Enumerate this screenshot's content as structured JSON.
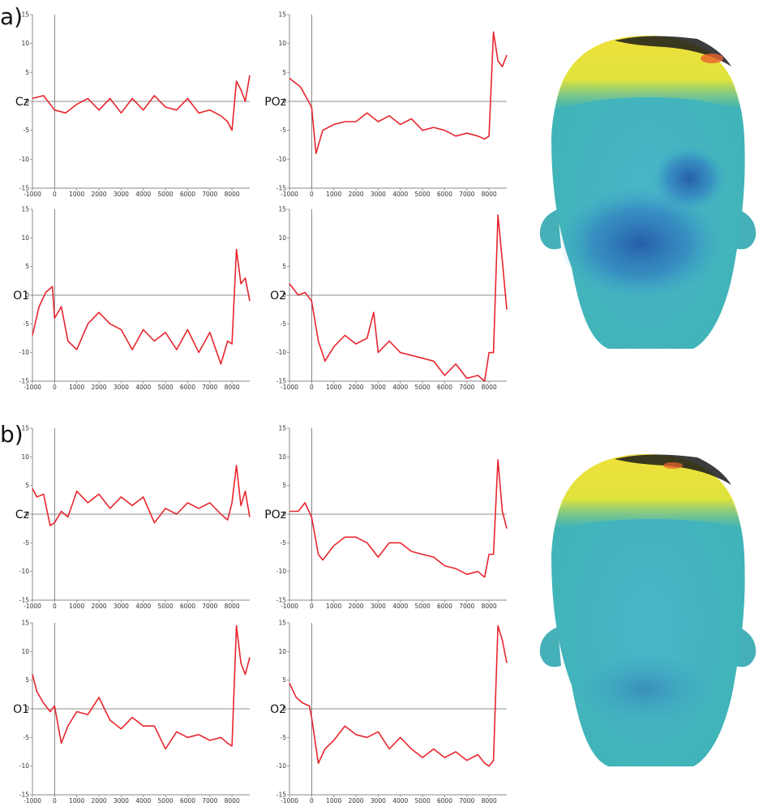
{
  "panel_labels": [
    "a)",
    "b)"
  ],
  "colors": {
    "trace": "#e8252d",
    "axis": "#888888",
    "baseline": "#666666"
  },
  "chart_data": [
    {
      "type": "line",
      "panel": "a)",
      "channel": "Cz",
      "xlim": [
        -1000,
        8800
      ],
      "ylim": [
        -15,
        15
      ],
      "xticks": [
        "-1000",
        "0",
        "1000",
        "2000",
        "3000",
        "4000",
        "5000",
        "6000",
        "7000",
        "8000"
      ],
      "yticks": [
        "15",
        "10",
        "5",
        "0",
        "-5",
        "-10",
        "-15"
      ],
      "x": [
        -1000,
        -500,
        0,
        500,
        1000,
        1500,
        2000,
        2500,
        3000,
        3500,
        4000,
        4500,
        5000,
        5500,
        6000,
        6500,
        7000,
        7500,
        7800,
        8000,
        8200,
        8400,
        8600,
        8800
      ],
      "y": [
        0.5,
        1,
        -1.5,
        -2,
        -0.5,
        0.5,
        -1.5,
        0.5,
        -2,
        0.5,
        -1.5,
        1,
        -1,
        -1.5,
        0.5,
        -2,
        -1.5,
        -2.5,
        -3.5,
        -5,
        3.5,
        2,
        0,
        4.5
      ]
    },
    {
      "type": "line",
      "panel": "a)",
      "channel": "POz",
      "xlim": [
        -1000,
        8800
      ],
      "ylim": [
        -15,
        15
      ],
      "xticks": [
        "-1000",
        "0",
        "1000",
        "2000",
        "3000",
        "4000",
        "5000",
        "6000",
        "7000",
        "8000"
      ],
      "yticks": [
        "15",
        "10",
        "5",
        "0",
        "-5",
        "-10",
        "-15"
      ],
      "x": [
        -1000,
        -500,
        0,
        200,
        500,
        1000,
        1500,
        2000,
        2500,
        3000,
        3500,
        4000,
        4500,
        5000,
        5500,
        6000,
        6500,
        7000,
        7500,
        7800,
        8000,
        8200,
        8400,
        8600,
        8800
      ],
      "y": [
        4,
        2.5,
        -1,
        -9,
        -5,
        -4,
        -3.5,
        -3.5,
        -2,
        -3.5,
        -2.5,
        -4,
        -3,
        -5,
        -4.5,
        -5,
        -6,
        -5.5,
        -6,
        -6.5,
        -6,
        12,
        7,
        6,
        8
      ]
    },
    {
      "type": "line",
      "panel": "a)",
      "channel": "O1",
      "xlim": [
        -1000,
        8800
      ],
      "ylim": [
        -15,
        15
      ],
      "xticks": [
        "-1000",
        "0",
        "1000",
        "2000",
        "3000",
        "4000",
        "5000",
        "6000",
        "7000",
        "8000"
      ],
      "yticks": [
        "15",
        "10",
        "5",
        "0",
        "-5",
        "-10",
        "-15"
      ],
      "x": [
        -1000,
        -700,
        -400,
        -100,
        0,
        300,
        600,
        1000,
        1500,
        2000,
        2500,
        3000,
        3500,
        4000,
        4500,
        5000,
        5500,
        6000,
        6500,
        7000,
        7500,
        7800,
        8000,
        8200,
        8400,
        8600,
        8800
      ],
      "y": [
        -7,
        -2,
        0.5,
        1.5,
        -4,
        -2,
        -8,
        -9.5,
        -5,
        -3,
        -5,
        -6,
        -9.5,
        -6,
        -8,
        -6.5,
        -9.5,
        -6,
        -10,
        -6.5,
        -12,
        -8,
        -8.5,
        8,
        2,
        3,
        -1
      ]
    },
    {
      "type": "line",
      "panel": "a)",
      "channel": "O2",
      "xlim": [
        -1000,
        8800
      ],
      "ylim": [
        -15,
        15
      ],
      "xticks": [
        "-1000",
        "0",
        "1000",
        "2000",
        "3000",
        "4000",
        "5000",
        "6000",
        "7000",
        "8000"
      ],
      "yticks": [
        "15",
        "10",
        "5",
        "0",
        "-5",
        "-10",
        "-15"
      ],
      "x": [
        -1000,
        -600,
        -300,
        0,
        300,
        600,
        1000,
        1500,
        2000,
        2500,
        2800,
        3000,
        3500,
        4000,
        4500,
        5000,
        5500,
        6000,
        6500,
        7000,
        7500,
        7800,
        8000,
        8200,
        8400,
        8600,
        8800
      ],
      "y": [
        2,
        0,
        0.5,
        -1,
        -8,
        -11.5,
        -9,
        -7,
        -8.5,
        -7.5,
        -3,
        -10,
        -8,
        -10,
        -10.5,
        -11,
        -11.5,
        -14,
        -12,
        -14.5,
        -14,
        -15,
        -10,
        -10,
        14,
        6,
        -2.5
      ]
    },
    {
      "type": "line",
      "panel": "b)",
      "channel": "Cz",
      "xlim": [
        -1000,
        8800
      ],
      "ylim": [
        -15,
        15
      ],
      "xticks": [
        "-1000",
        "0",
        "1000",
        "2000",
        "3000",
        "4000",
        "5000",
        "6000",
        "7000",
        "8000"
      ],
      "yticks": [
        "15",
        "10",
        "5",
        "0",
        "-5",
        "-10",
        "-15"
      ],
      "x": [
        -1000,
        -800,
        -500,
        -200,
        0,
        300,
        600,
        1000,
        1500,
        2000,
        2500,
        3000,
        3500,
        4000,
        4500,
        5000,
        5500,
        6000,
        6500,
        7000,
        7500,
        7800,
        8000,
        8200,
        8400,
        8600,
        8800
      ],
      "y": [
        4.5,
        3,
        3.5,
        -2,
        -1.5,
        0.5,
        -0.5,
        4,
        2,
        3.5,
        1,
        3,
        1.5,
        3,
        -1.5,
        1,
        0,
        2,
        1,
        2,
        0,
        -1,
        2,
        8.5,
        1.5,
        4,
        -0.5
      ]
    },
    {
      "type": "line",
      "panel": "b)",
      "channel": "POz",
      "xlim": [
        -1000,
        8800
      ],
      "ylim": [
        -15,
        15
      ],
      "xticks": [
        "-1000",
        "0",
        "1000",
        "2000",
        "3000",
        "4000",
        "5000",
        "6000",
        "7000",
        "8000"
      ],
      "yticks": [
        "15",
        "10",
        "5",
        "0",
        "-5",
        "-10",
        "-15"
      ],
      "x": [
        -1000,
        -600,
        -300,
        0,
        300,
        500,
        1000,
        1500,
        2000,
        2500,
        3000,
        3500,
        4000,
        4500,
        5000,
        5500,
        6000,
        6500,
        7000,
        7500,
        7800,
        8000,
        8200,
        8400,
        8600,
        8800
      ],
      "y": [
        0.5,
        0.5,
        2,
        -0.5,
        -7,
        -8,
        -5.5,
        -4,
        -4,
        -5,
        -7.5,
        -5,
        -5,
        -6.5,
        -7,
        -7.5,
        -9,
        -9.5,
        -10.5,
        -10,
        -11,
        -7,
        -7,
        9.5,
        0.5,
        -2.5
      ]
    },
    {
      "type": "line",
      "panel": "b)",
      "channel": "O1",
      "xlim": [
        -1000,
        8800
      ],
      "ylim": [
        -15,
        15
      ],
      "xticks": [
        "-1000",
        "0",
        "1000",
        "2000",
        "3000",
        "4000",
        "5000",
        "6000",
        "7000",
        "8000"
      ],
      "yticks": [
        "15",
        "10",
        "5",
        "0",
        "-5",
        "-10",
        "-15"
      ],
      "x": [
        -1000,
        -800,
        -500,
        -200,
        0,
        300,
        600,
        1000,
        1500,
        2000,
        2500,
        3000,
        3500,
        4000,
        4500,
        5000,
        5500,
        6000,
        6500,
        7000,
        7500,
        7800,
        8000,
        8200,
        8400,
        8600,
        8800
      ],
      "y": [
        6,
        3,
        1,
        -0.5,
        0.5,
        -6,
        -3,
        -0.5,
        -1,
        2,
        -2,
        -3.5,
        -1.5,
        -3,
        -3,
        -7,
        -4,
        -5,
        -4.5,
        -5.5,
        -5,
        -6,
        -6.5,
        14.5,
        8,
        6,
        9
      ]
    },
    {
      "type": "line",
      "panel": "b)",
      "channel": "O2",
      "xlim": [
        -1000,
        8800
      ],
      "ylim": [
        -15,
        15
      ],
      "xticks": [
        "-1000",
        "0",
        "1000",
        "2000",
        "3000",
        "4000",
        "5000",
        "6000",
        "7000",
        "8000"
      ],
      "yticks": [
        "15",
        "10",
        "5",
        "0",
        "-5",
        "-10",
        "-15"
      ],
      "x": [
        -1000,
        -700,
        -400,
        -100,
        0,
        300,
        600,
        1000,
        1500,
        2000,
        2500,
        3000,
        3500,
        4000,
        4500,
        5000,
        5500,
        6000,
        6500,
        7000,
        7500,
        7800,
        8000,
        8200,
        8400,
        8600,
        8800
      ],
      "y": [
        4.5,
        2,
        1,
        0.5,
        -1.5,
        -9.5,
        -7,
        -5.5,
        -3,
        -4.5,
        -5,
        -4,
        -7,
        -5,
        -7,
        -8.5,
        -7,
        -8.5,
        -7.5,
        -9,
        -8,
        -9.5,
        -10,
        -9,
        14.5,
        12,
        8
      ]
    }
  ]
}
